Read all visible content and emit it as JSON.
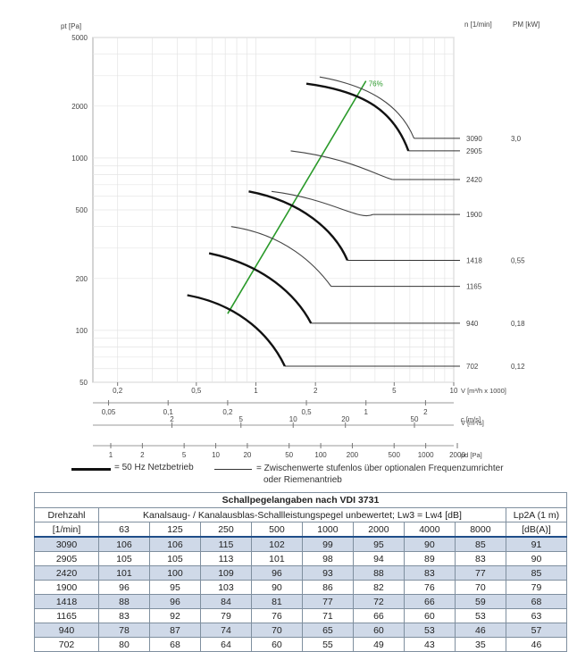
{
  "chart_data": {
    "type": "line",
    "scale": "log-log",
    "y_axis": {
      "label": "pt [Pa]",
      "ticks": [
        "5000",
        "2000",
        "1000",
        "500",
        "200",
        "100",
        "50"
      ],
      "ylim": [
        50,
        5000
      ]
    },
    "right_headers": {
      "speed": "n [1/min]",
      "power": "PM [kW]"
    },
    "x_axes": [
      {
        "id": "V_m3h",
        "label": "V [m³/h x 1000]",
        "ticks": [
          "0,2",
          "0,5",
          "1",
          "2",
          "5",
          "10"
        ]
      },
      {
        "id": "V_m3s",
        "label": "V [m³/s]",
        "ticks": [
          "0,05",
          "0,1",
          "0,2",
          "0,5",
          "1",
          "2"
        ]
      },
      {
        "id": "c",
        "label": "c [m/s]",
        "ticks": [
          "2",
          "5",
          "10",
          "20",
          "50"
        ]
      },
      {
        "id": "pd",
        "label": "pd [Pa]",
        "ticks": [
          "1",
          "2",
          "5",
          "10",
          "20",
          "50",
          "100",
          "200",
          "500",
          "1000",
          "2000"
        ]
      }
    ],
    "series": [
      {
        "speed": "3090",
        "power": "3,0",
        "thick": false,
        "points": [
          [
            2.1,
            2950
          ],
          [
            3.8,
            2620
          ],
          [
            5.4,
            2000
          ],
          [
            6.3,
            1300
          ]
        ]
      },
      {
        "speed": "2905",
        "power": "",
        "thick": true,
        "points": [
          [
            1.8,
            2700
          ],
          [
            3.6,
            2430
          ],
          [
            5.0,
            1850
          ],
          [
            5.9,
            1100
          ]
        ]
      },
      {
        "speed": "2420",
        "power": "",
        "thick": false,
        "points": [
          [
            1.5,
            1100
          ],
          [
            3.0,
            1000
          ],
          [
            4.2,
            780
          ],
          [
            4.9,
            750
          ]
        ]
      },
      {
        "speed": "1900",
        "power": "",
        "thick": false,
        "points": [
          [
            1.2,
            640
          ],
          [
            2.4,
            580
          ],
          [
            3.3,
            430
          ],
          [
            3.9,
            470
          ]
        ]
      },
      {
        "speed": "1418",
        "power": "0,55",
        "thick": true,
        "points": [
          [
            0.92,
            640
          ],
          [
            1.7,
            560
          ],
          [
            2.5,
            380
          ],
          [
            2.9,
            255
          ]
        ]
      },
      {
        "speed": "1165",
        "power": "",
        "thick": false,
        "points": [
          [
            0.75,
            400
          ],
          [
            1.4,
            360
          ],
          [
            2.0,
            240
          ],
          [
            2.4,
            180
          ]
        ]
      },
      {
        "speed": "940",
        "power": "0,18",
        "thick": true,
        "points": [
          [
            0.58,
            280
          ],
          [
            1.1,
            240
          ],
          [
            1.6,
            160
          ],
          [
            1.9,
            110
          ]
        ]
      },
      {
        "speed": "702",
        "power": "0,12",
        "thick": true,
        "points": [
          [
            0.45,
            160
          ],
          [
            0.85,
            140
          ],
          [
            1.2,
            90
          ],
          [
            1.4,
            62
          ]
        ]
      }
    ],
    "efficiency_line": {
      "label": "76%",
      "from": [
        0.72,
        125
      ],
      "to": [
        3.6,
        2800
      ]
    }
  },
  "legend": {
    "thick": "= 50 Hz Netzbetrieb",
    "thin_line1": "= Zwischenwerte stufenlos über optionalen Frequenzumrichter",
    "thin_line2": "oder Riemenantrieb"
  },
  "table": {
    "title": "Schallpegelangaben nach VDI 3731",
    "col1_header": "Drehzahl",
    "col1_unit": "[1/min]",
    "mid_header": "Kanalsaug- / Kanalausblas-Schallleistungspegel unbewertet; Lw3 = Lw4 [dB]",
    "last_header": "Lp2A (1 m)",
    "last_unit": "[dB(A)]",
    "frequencies": [
      "63",
      "125",
      "250",
      "500",
      "1000",
      "2000",
      "4000",
      "8000"
    ],
    "rows": [
      [
        "3090",
        "106",
        "106",
        "115",
        "102",
        "99",
        "95",
        "90",
        "85",
        "91"
      ],
      [
        "2905",
        "105",
        "105",
        "113",
        "101",
        "98",
        "94",
        "89",
        "83",
        "90"
      ],
      [
        "2420",
        "101",
        "100",
        "109",
        "96",
        "93",
        "88",
        "83",
        "77",
        "85"
      ],
      [
        "1900",
        "96",
        "95",
        "103",
        "90",
        "86",
        "82",
        "76",
        "70",
        "79"
      ],
      [
        "1418",
        "88",
        "96",
        "84",
        "81",
        "77",
        "72",
        "66",
        "59",
        "68"
      ],
      [
        "1165",
        "83",
        "92",
        "79",
        "76",
        "71",
        "66",
        "60",
        "53",
        "63"
      ],
      [
        "940",
        "78",
        "87",
        "74",
        "70",
        "65",
        "60",
        "53",
        "46",
        "57"
      ],
      [
        "702",
        "80",
        "68",
        "64",
        "60",
        "55",
        "49",
        "43",
        "35",
        "46"
      ]
    ]
  },
  "colors": {
    "green": "#2a9a2a",
    "shade": "#cfd9e8",
    "border": "#1f4e89"
  }
}
